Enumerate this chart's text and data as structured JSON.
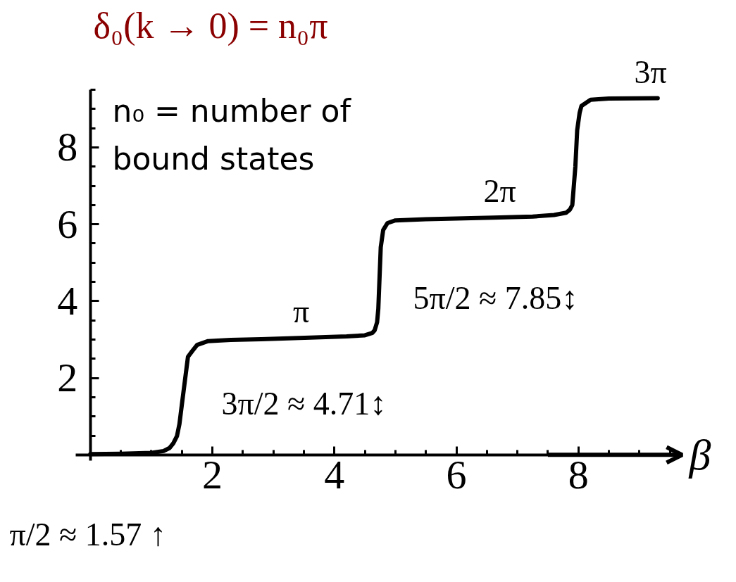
{
  "chart_data": {
    "type": "line",
    "title": "δ₀(k → 0) = n₀π",
    "xlabel": "β",
    "x": [
      0,
      0.5,
      1.0,
      1.2,
      1.3,
      1.36,
      1.42,
      1.46,
      1.5,
      1.55,
      1.6,
      1.67,
      1.75,
      1.93,
      2.3,
      2.8,
      3.6,
      4.2,
      4.5,
      4.62,
      4.66,
      4.7,
      4.72,
      4.74,
      4.76,
      4.8,
      4.87,
      5.0,
      5.5,
      6.0,
      6.6,
      7.25,
      7.6,
      7.8,
      7.86,
      7.9,
      7.95,
      7.98,
      8.02,
      8.05,
      8.2,
      8.5,
      9.3
    ],
    "series": [
      {
        "color": "#000000",
        "values": [
          0.02,
          0.03,
          0.05,
          0.1,
          0.18,
          0.3,
          0.49,
          0.8,
          1.31,
          1.93,
          2.55,
          2.7,
          2.86,
          2.96,
          2.99,
          3.01,
          3.05,
          3.08,
          3.11,
          3.17,
          3.24,
          3.45,
          3.8,
          4.6,
          5.4,
          5.85,
          6.03,
          6.1,
          6.13,
          6.15,
          6.17,
          6.2,
          6.24,
          6.3,
          6.38,
          6.5,
          7.5,
          8.45,
          8.9,
          9.08,
          9.24,
          9.27,
          9.28
        ]
      }
    ],
    "xlim": [
      -0.24,
      9.7
    ],
    "ylim": [
      -0.15,
      9.5
    ],
    "xticks": [
      2,
      4,
      6,
      8
    ],
    "yticks": [
      2,
      4,
      6,
      8
    ],
    "marker": "none",
    "line_style": "solid",
    "annotations": [
      "n₀ = number of bound states",
      "π/2 ≈ 1.57 ↑",
      {
        "text": "π",
        "x": 3.45,
        "y": 3.05
      },
      {
        "text": "2π",
        "x": 6.84,
        "y": 6.17
      },
      {
        "text": "3π",
        "x": 9.31,
        "y": 9.28
      },
      {
        "text": "3π/2 ≈ 4.71↕",
        "x": 4.71,
        "y": 3.63
      },
      {
        "text": "5π/2 ≈ 7.85↕",
        "x": 7.85,
        "y": 6.37
      }
    ]
  }
}
